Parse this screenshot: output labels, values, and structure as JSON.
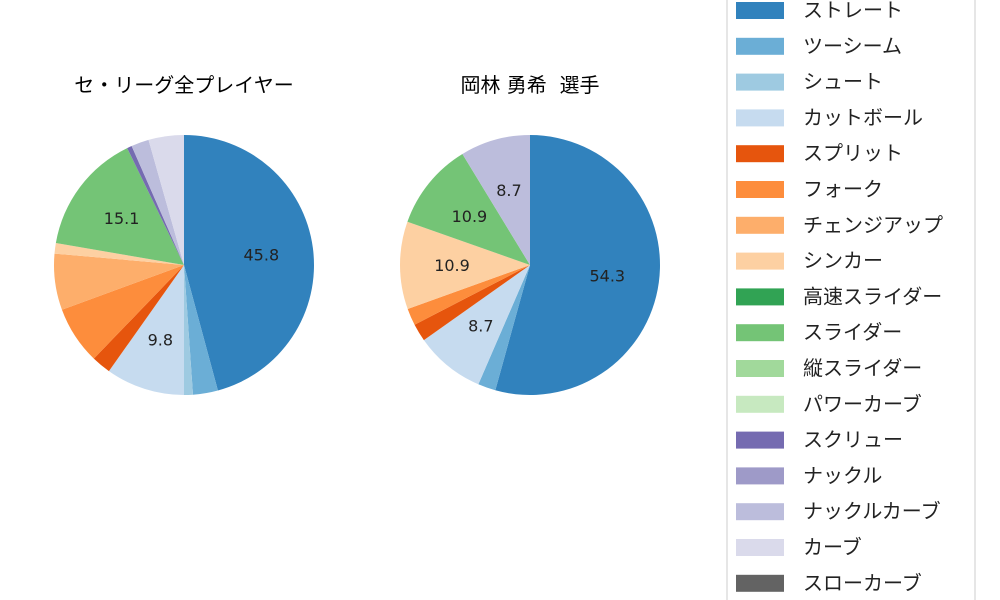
{
  "chart_data": [
    {
      "type": "pie",
      "title": "セ・リーグ全プレイヤー",
      "start": "top",
      "direction": "clockwise",
      "slices": [
        {
          "label": "ストレート",
          "value": 45.8,
          "show_label": true
        },
        {
          "label": "ツーシーム",
          "value": 3.1,
          "show_label": false
        },
        {
          "label": "シュート",
          "value": 1.1,
          "show_label": false
        },
        {
          "label": "カットボール",
          "value": 9.8,
          "show_label": true
        },
        {
          "label": "スプリット",
          "value": 2.4,
          "show_label": false
        },
        {
          "label": "フォーク",
          "value": 7.2,
          "show_label": false
        },
        {
          "label": "チェンジアップ",
          "value": 7.0,
          "show_label": false
        },
        {
          "label": "シンカー",
          "value": 1.3,
          "show_label": false
        },
        {
          "label": "スライダー",
          "value": 15.1,
          "show_label": true
        },
        {
          "label": "スクリュー",
          "value": 0.6,
          "show_label": false
        },
        {
          "label": "ナックルカーブ",
          "value": 2.2,
          "show_label": false
        },
        {
          "label": "カーブ",
          "value": 4.4,
          "show_label": false
        }
      ]
    },
    {
      "type": "pie",
      "title": "岡林 勇希  選手",
      "start": "top",
      "direction": "clockwise",
      "slices": [
        {
          "label": "ストレート",
          "value": 54.3,
          "show_label": true
        },
        {
          "label": "ツーシーム",
          "value": 2.2,
          "show_label": false
        },
        {
          "label": "カットボール",
          "value": 8.7,
          "show_label": true
        },
        {
          "label": "スプリット",
          "value": 2.2,
          "show_label": false
        },
        {
          "label": "フォーク",
          "value": 2.1,
          "show_label": false
        },
        {
          "label": "シンカー",
          "value": 10.9,
          "show_label": true
        },
        {
          "label": "スライダー",
          "value": 10.9,
          "show_label": true
        },
        {
          "label": "ナックルカーブ",
          "value": 8.7,
          "show_label": true
        }
      ]
    }
  ],
  "legend": {
    "placement": "right",
    "items": [
      {
        "label": "ストレート",
        "color": "#3182bd"
      },
      {
        "label": "ツーシーム",
        "color": "#6baed6"
      },
      {
        "label": "シュート",
        "color": "#9ecae1"
      },
      {
        "label": "カットボール",
        "color": "#c6dbef"
      },
      {
        "label": "スプリット",
        "color": "#e6550d"
      },
      {
        "label": "フォーク",
        "color": "#fd8d3c"
      },
      {
        "label": "チェンジアップ",
        "color": "#fdae6b"
      },
      {
        "label": "シンカー",
        "color": "#fdd0a2"
      },
      {
        "label": "高速スライダー",
        "color": "#31a354"
      },
      {
        "label": "スライダー",
        "color": "#74c476"
      },
      {
        "label": "縦スライダー",
        "color": "#a1d99b"
      },
      {
        "label": "パワーカーブ",
        "color": "#c7e9c0"
      },
      {
        "label": "スクリュー",
        "color": "#756bb1"
      },
      {
        "label": "ナックル",
        "color": "#9e9ac8"
      },
      {
        "label": "ナックルカーブ",
        "color": "#bcbddc"
      },
      {
        "label": "カーブ",
        "color": "#dadaeb"
      },
      {
        "label": "スローカーブ",
        "color": "#636363"
      }
    ]
  }
}
